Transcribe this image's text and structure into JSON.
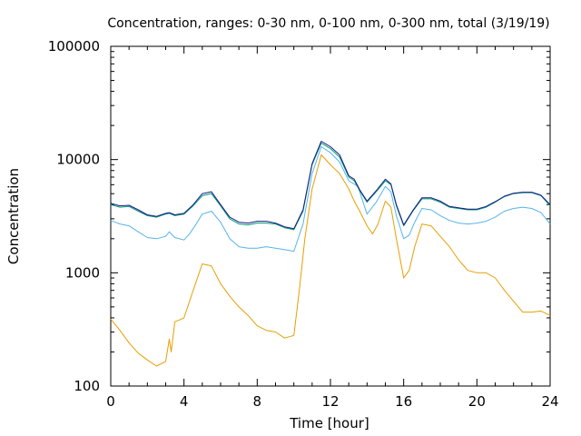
{
  "chart_data": {
    "type": "line",
    "title": "Concentration, ranges: 0-30 nm, 0-100 nm, 0-300 nm, total (3/19/19)",
    "xlabel": "Time [hour]",
    "ylabel": "Concentration",
    "xlim": [
      0,
      24
    ],
    "ylim": [
      100,
      100000
    ],
    "yscale": "log",
    "grid": false,
    "x_ticks": [
      0,
      4,
      8,
      12,
      16,
      20,
      24
    ],
    "y_ticks": [
      100,
      1000,
      10000,
      100000
    ],
    "x_tick_labels": [
      "0",
      "4",
      "8",
      "12",
      "16",
      "20",
      "24"
    ],
    "y_tick_labels": [
      "100",
      "1000",
      "10000",
      "100000"
    ],
    "series": [
      {
        "color": "#e69f00",
        "x": [
          0,
          0.5,
          1,
          1.5,
          2,
          2.5,
          3,
          3.2,
          3.3,
          3.5,
          3.7,
          4,
          4.5,
          5,
          5.5,
          6,
          6.5,
          7,
          7.5,
          8,
          8.5,
          9,
          9.5,
          10,
          10.3,
          10.6,
          11,
          11.5,
          12,
          12.5,
          13,
          13.3,
          13.6,
          14,
          14.3,
          14.6,
          15,
          15.3,
          15.6,
          16,
          16.3,
          16.6,
          17,
          17.5,
          18,
          18.5,
          19,
          19.5,
          20,
          20.5,
          21,
          21.5,
          22,
          22.5,
          23,
          23.5,
          24
        ],
        "y": [
          390,
          310,
          240,
          195,
          170,
          150,
          165,
          260,
          200,
          370,
          380,
          400,
          700,
          1200,
          1150,
          800,
          620,
          500,
          420,
          340,
          310,
          300,
          265,
          280,
          700,
          2000,
          5500,
          11000,
          9000,
          7500,
          5500,
          4300,
          3500,
          2600,
          2200,
          2700,
          4300,
          3800,
          2000,
          900,
          1050,
          1700,
          2700,
          2600,
          2100,
          1700,
          1300,
          1050,
          1000,
          1000,
          900,
          700,
          560,
          450,
          450,
          460,
          420
        ]
      },
      {
        "color": "#56b4e9",
        "x": [
          0,
          0.5,
          1,
          1.5,
          2,
          2.5,
          3,
          3.2,
          3.5,
          4,
          4.3,
          4.6,
          5,
          5.5,
          6,
          6.5,
          7,
          7.5,
          8,
          8.5,
          9,
          9.5,
          10,
          10.5,
          11,
          11.5,
          12,
          12.5,
          13,
          13.5,
          14,
          14.5,
          15,
          15.3,
          15.6,
          16,
          16.3,
          16.6,
          17,
          17.5,
          18,
          18.5,
          19,
          19.5,
          20,
          20.5,
          21,
          21.5,
          22,
          22.5,
          23,
          23.5,
          24
        ],
        "y": [
          2900,
          2700,
          2600,
          2300,
          2050,
          2000,
          2100,
          2300,
          2050,
          1950,
          2200,
          2600,
          3300,
          3500,
          2800,
          2000,
          1700,
          1650,
          1650,
          1700,
          1650,
          1600,
          1550,
          2700,
          7500,
          13000,
          11500,
          9500,
          6500,
          5800,
          3300,
          4200,
          5800,
          5200,
          3200,
          2000,
          2150,
          2800,
          3700,
          3600,
          3200,
          2900,
          2750,
          2700,
          2750,
          2850,
          3100,
          3500,
          3700,
          3800,
          3700,
          3400,
          2700
        ]
      },
      {
        "color": "#009e73",
        "x": [
          0,
          0.5,
          1,
          1.5,
          2,
          2.5,
          3,
          3.2,
          3.5,
          4,
          4.5,
          5,
          5.5,
          6,
          6.5,
          7,
          7.5,
          8,
          8.5,
          9,
          9.5,
          10,
          10.5,
          11,
          11.5,
          12,
          12.5,
          13,
          13.3,
          13.6,
          14,
          14.5,
          15,
          15.3,
          15.6,
          16,
          16.5,
          17,
          17.5,
          18,
          18.5,
          19,
          19.5,
          20,
          20.5,
          21,
          21.5,
          22,
          22.5,
          23,
          23.5,
          24
        ],
        "y": [
          4000,
          3800,
          3850,
          3500,
          3200,
          3100,
          3300,
          3350,
          3200,
          3300,
          3900,
          4800,
          5000,
          3900,
          3000,
          2700,
          2650,
          2750,
          2750,
          2700,
          2500,
          2400,
          3500,
          9000,
          14000,
          12500,
          10500,
          7000,
          6500,
          5300,
          4200,
          5200,
          6500,
          6000,
          3900,
          2600,
          3500,
          4500,
          4500,
          4200,
          3800,
          3700,
          3600,
          3600,
          3800,
          4200,
          4700,
          5000,
          5100,
          5100,
          4800,
          3900
        ]
      },
      {
        "color": "#1a1a8a",
        "x": [
          0,
          0.5,
          1,
          1.5,
          2,
          2.5,
          3,
          3.2,
          3.5,
          4,
          4.5,
          5,
          5.5,
          6,
          6.5,
          7,
          7.5,
          8,
          8.5,
          9,
          9.5,
          10,
          10.5,
          11,
          11.5,
          12,
          12.5,
          13,
          13.3,
          13.6,
          14,
          14.5,
          15,
          15.3,
          15.6,
          16,
          16.5,
          17,
          17.5,
          18,
          18.5,
          19,
          19.5,
          20,
          20.5,
          21,
          21.5,
          22,
          22.5,
          23,
          23.5,
          24
        ],
        "y": [
          4100,
          3900,
          3950,
          3600,
          3250,
          3150,
          3350,
          3400,
          3250,
          3350,
          4000,
          5000,
          5200,
          4000,
          3100,
          2800,
          2750,
          2850,
          2850,
          2750,
          2550,
          2450,
          3600,
          9200,
          14500,
          13000,
          11000,
          7200,
          6700,
          5400,
          4300,
          5300,
          6700,
          6100,
          4000,
          2650,
          3550,
          4600,
          4600,
          4300,
          3850,
          3750,
          3650,
          3650,
          3850,
          4250,
          4750,
          5050,
          5150,
          5150,
          4850,
          4000
        ]
      }
    ]
  }
}
